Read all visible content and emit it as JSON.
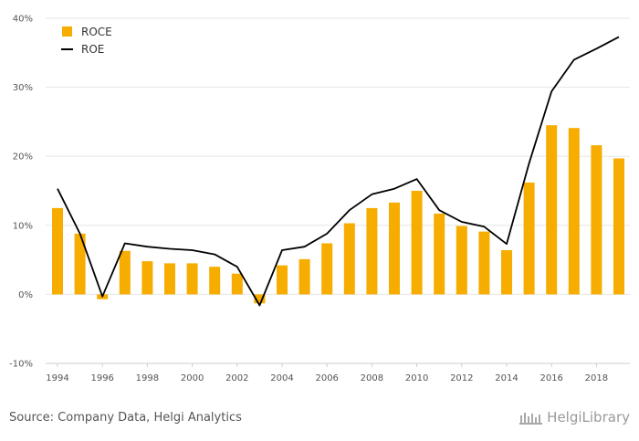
{
  "chart_data": {
    "type": "bar",
    "x": [
      "1994",
      "1995",
      "1996",
      "1997",
      "1998",
      "1999",
      "2000",
      "2001",
      "2002",
      "2003",
      "2004",
      "2005",
      "2006",
      "2007",
      "2008",
      "2009",
      "2010",
      "2011",
      "2012",
      "2013",
      "2014",
      "2015",
      "2016",
      "2017",
      "2018",
      "2019"
    ],
    "x_tick_labels": [
      "1994",
      "1996",
      "1998",
      "2000",
      "2002",
      "2004",
      "2006",
      "2008",
      "2010",
      "2012",
      "2014",
      "2016",
      "2018"
    ],
    "y_tick_labels": [
      "40%",
      "30%",
      "20%",
      "10%",
      "0%",
      "-10%"
    ],
    "ylim": [
      -10,
      40
    ],
    "y_unit": "%",
    "grid": true,
    "legend_position": "top-left",
    "series": [
      {
        "name": "ROCE",
        "type": "bar",
        "color": "#F7AC00",
        "values": [
          12.5,
          8.8,
          -0.7,
          6.3,
          4.8,
          4.5,
          4.5,
          4.0,
          3.0,
          -1.3,
          4.2,
          5.1,
          7.4,
          10.3,
          12.5,
          13.3,
          15.0,
          11.7,
          9.9,
          9.1,
          6.4,
          16.2,
          24.5,
          24.1,
          21.6,
          19.7
        ]
      },
      {
        "name": "ROE",
        "type": "line",
        "color": "#000000",
        "values": [
          15.3,
          8.8,
          -0.3,
          7.4,
          6.9,
          6.6,
          6.4,
          5.8,
          4.0,
          -1.6,
          6.4,
          6.9,
          8.8,
          12.2,
          14.5,
          15.3,
          16.7,
          12.2,
          10.5,
          9.8,
          7.3,
          19.0,
          29.4,
          34.0,
          35.6,
          37.3
        ]
      }
    ]
  },
  "footer": {
    "source": "Source: Company Data, Helgi Analytics",
    "logo_text": "HelgiLibrary",
    "logo_color": "#9a9a9a"
  },
  "colors": {
    "grid": "#e6e6e6",
    "axis": "#cccccc"
  }
}
